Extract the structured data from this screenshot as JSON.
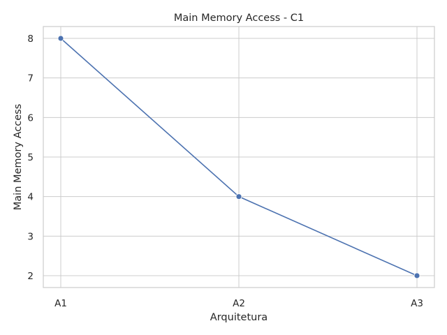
{
  "chart_data": {
    "type": "line",
    "title": "Main Memory Access - C1",
    "xlabel": "Arquitetura",
    "ylabel": "Main Memory Access",
    "categories": [
      "A1",
      "A2",
      "A3"
    ],
    "series": [
      {
        "values": [
          8,
          4,
          2
        ]
      }
    ],
    "ylim": [
      1.7,
      8.3
    ],
    "yticks": [
      2,
      3,
      4,
      5,
      6,
      7,
      8
    ],
    "grid": true,
    "colors": {
      "line": "#4c72b0",
      "grid": "#cccccc",
      "axes": "#cccccc",
      "text": "#262626"
    }
  }
}
